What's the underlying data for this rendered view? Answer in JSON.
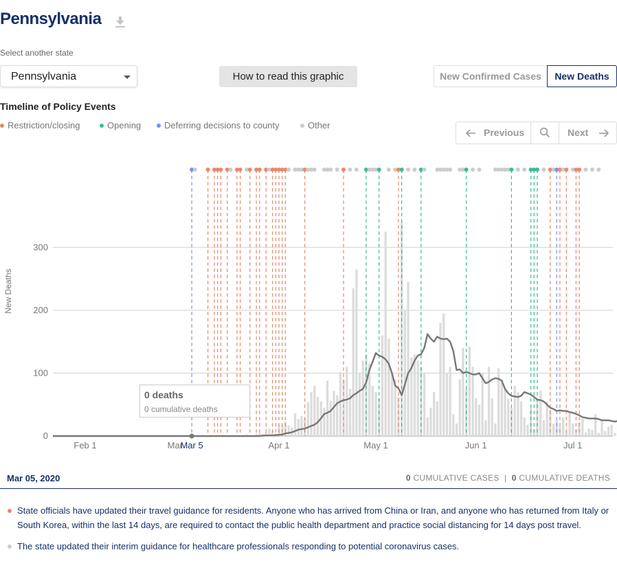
{
  "header": {
    "title": "Pennsylvania"
  },
  "selector": {
    "label": "Select another state",
    "value": "Pennsylvania"
  },
  "howto_label": "How to read this graphic",
  "toggles": {
    "cases": "New Confirmed Cases",
    "deaths": "New Deaths"
  },
  "timeline": {
    "title": "Timeline of Policy Events",
    "legend": [
      {
        "label": "Restriction/closing",
        "color": "#e8896b"
      },
      {
        "label": "Opening",
        "color": "#3fb99b"
      },
      {
        "label": "Deferring decisions to county",
        "color": "#7b8ff0"
      },
      {
        "label": "Other",
        "color": "#cccccc"
      }
    ]
  },
  "nav": {
    "prev": "Previous",
    "next": "Next"
  },
  "tooltip": {
    "deaths": "0 deaths",
    "cumulative": "0 cumulative deaths"
  },
  "footer": {
    "date": "Mar 05, 2020",
    "cum_cases_num": "0",
    "cum_cases_label": "CUMULATIVE CASES",
    "separator": "|",
    "cum_deaths_num": "0",
    "cum_deaths_label": "CUMULATIVE DEATHS"
  },
  "events": [
    {
      "color": "#e8896b",
      "text": "State officials have updated their travel guidance for residents. Anyone who has arrived from China or Iran, and anyone who has returned from Italy or South Korea, within the last 14 days, are required to contact the public health department and practice social distancing for 14 days post travel."
    },
    {
      "color": "#cccccc",
      "text": "The state updated their interim guidance for healthcare professionals responding to potential coronavirus cases."
    }
  ],
  "chart_data": {
    "type": "bar",
    "ylabel": "New Deaths",
    "ylim": [
      0,
      380
    ],
    "yticks": [
      0,
      100,
      200,
      300
    ],
    "x_range": [
      "2020-01-22",
      "2020-07-16"
    ],
    "xticks": [
      {
        "label": "Feb 1",
        "date": "2020-02-01"
      },
      {
        "label": "Mar 1",
        "date": "2020-03-01"
      },
      {
        "label": "Apr 1",
        "date": "2020-04-01"
      },
      {
        "label": "May 1",
        "date": "2020-05-01"
      },
      {
        "label": "Jun 1",
        "date": "2020-06-01"
      },
      {
        "label": "Jul 1",
        "date": "2020-07-01"
      }
    ],
    "selected": {
      "label": "Mar 5",
      "date": "2020-03-05",
      "value": 0
    },
    "series": [
      {
        "type": "bar",
        "start": "2020-03-18",
        "values": [
          0,
          1,
          1,
          0,
          2,
          1,
          1,
          3,
          5,
          3,
          6,
          12,
          8,
          4,
          17,
          18,
          23,
          17,
          14,
          36,
          27,
          32,
          28,
          54,
          70,
          80,
          62,
          55,
          45,
          88,
          56,
          72,
          65,
          102,
          90,
          110,
          75,
          235,
          265,
          100,
          120,
          130,
          115,
          80,
          70,
          60,
          160,
          325,
          155,
          100,
          90,
          62,
          340,
          200,
          245,
          125,
          130,
          120,
          110,
          100,
          30,
          45,
          70,
          55,
          180,
          195,
          100,
          110,
          35,
          20,
          90,
          140,
          75,
          142,
          110,
          60,
          50,
          100,
          25,
          110,
          60,
          20,
          108,
          90,
          75,
          60,
          45,
          80,
          70,
          55,
          30,
          18,
          45,
          10,
          58,
          72,
          25,
          55,
          42,
          20,
          25,
          15,
          30,
          8,
          38,
          20,
          10,
          22,
          28,
          6,
          12,
          10,
          35,
          5,
          25,
          8,
          15,
          18,
          5,
          30,
          35,
          20,
          37
        ]
      },
      {
        "type": "line",
        "name": "7-day average",
        "start": "2020-01-22",
        "values": [
          0,
          0,
          0,
          0,
          0,
          0,
          0,
          0,
          0,
          0,
          0,
          0,
          0,
          0,
          0,
          0,
          0,
          0,
          0,
          0,
          0,
          0,
          0,
          0,
          0,
          0,
          0,
          0,
          0,
          0,
          0,
          0,
          0,
          0,
          0,
          0,
          0,
          0,
          0,
          0,
          0,
          0,
          0,
          0,
          0,
          0,
          0,
          0,
          0,
          0,
          0,
          0,
          0,
          0,
          0,
          0,
          0,
          0,
          0,
          0,
          0,
          0,
          0,
          0,
          0,
          0.5,
          1,
          1,
          1,
          1.5,
          2,
          2.5,
          4,
          5,
          6,
          8,
          10,
          11,
          12,
          14,
          16,
          18,
          22,
          28,
          35,
          37,
          40,
          46,
          52,
          55,
          57,
          58,
          60,
          65,
          68,
          72,
          75,
          85,
          105,
          118,
          132,
          128,
          126,
          122,
          115,
          100,
          80,
          76,
          65,
          82,
          100,
          108,
          120,
          128,
          130,
          140,
          162,
          155,
          150,
          158,
          155,
          154,
          155,
          150,
          135,
          105,
          106,
          100,
          102,
          100,
          98,
          98,
          100,
          92,
          84,
          86,
          90,
          92,
          91,
          88,
          75,
          68,
          64,
          63,
          62,
          64,
          70,
          68,
          66,
          62,
          58,
          57,
          55,
          50,
          45,
          43,
          40,
          41,
          40,
          40,
          38,
          37,
          35,
          33,
          30,
          29,
          28,
          28,
          28,
          27,
          25,
          25,
          25,
          24,
          23,
          24,
          22,
          21,
          20,
          20,
          19,
          19,
          20
        ]
      }
    ],
    "policy_events": [
      {
        "date": "2020-03-05",
        "cat": "county"
      },
      {
        "date": "2020-03-06",
        "cat": "other"
      },
      {
        "date": "2020-03-10",
        "cat": "restriction"
      },
      {
        "date": "2020-03-12",
        "cat": "restriction"
      },
      {
        "date": "2020-03-13",
        "cat": "restriction"
      },
      {
        "date": "2020-03-14",
        "cat": "restriction"
      },
      {
        "date": "2020-03-16",
        "cat": "restriction"
      },
      {
        "date": "2020-03-17",
        "cat": "other"
      },
      {
        "date": "2020-03-19",
        "cat": "restriction"
      },
      {
        "date": "2020-03-20",
        "cat": "restriction"
      },
      {
        "date": "2020-03-22",
        "cat": "other"
      },
      {
        "date": "2020-03-23",
        "cat": "restriction"
      },
      {
        "date": "2020-03-25",
        "cat": "restriction"
      },
      {
        "date": "2020-03-26",
        "cat": "restriction"
      },
      {
        "date": "2020-03-28",
        "cat": "restriction"
      },
      {
        "date": "2020-03-29",
        "cat": "other"
      },
      {
        "date": "2020-03-30",
        "cat": "restriction"
      },
      {
        "date": "2020-03-31",
        "cat": "restriction"
      },
      {
        "date": "2020-04-01",
        "cat": "restriction"
      },
      {
        "date": "2020-04-02",
        "cat": "restriction"
      },
      {
        "date": "2020-04-03",
        "cat": "restriction"
      },
      {
        "date": "2020-04-04",
        "cat": "other"
      },
      {
        "date": "2020-04-06",
        "cat": "other"
      },
      {
        "date": "2020-04-07",
        "cat": "other"
      },
      {
        "date": "2020-04-08",
        "cat": "other"
      },
      {
        "date": "2020-04-09",
        "cat": "restriction"
      },
      {
        "date": "2020-04-10",
        "cat": "other"
      },
      {
        "date": "2020-04-11",
        "cat": "other"
      },
      {
        "date": "2020-04-12",
        "cat": "other"
      },
      {
        "date": "2020-04-15",
        "cat": "other"
      },
      {
        "date": "2020-04-16",
        "cat": "other"
      },
      {
        "date": "2020-04-17",
        "cat": "other"
      },
      {
        "date": "2020-04-19",
        "cat": "other"
      },
      {
        "date": "2020-04-21",
        "cat": "restriction"
      },
      {
        "date": "2020-04-23",
        "cat": "other"
      },
      {
        "date": "2020-04-25",
        "cat": "other"
      },
      {
        "date": "2020-04-28",
        "cat": "opening"
      },
      {
        "date": "2020-04-29",
        "cat": "other"
      },
      {
        "date": "2020-04-30",
        "cat": "other"
      },
      {
        "date": "2020-05-01",
        "cat": "other"
      },
      {
        "date": "2020-05-02",
        "cat": "opening"
      },
      {
        "date": "2020-05-05",
        "cat": "other"
      },
      {
        "date": "2020-05-07",
        "cat": "other"
      },
      {
        "date": "2020-05-08",
        "cat": "restriction"
      },
      {
        "date": "2020-05-09",
        "cat": "opening"
      },
      {
        "date": "2020-05-11",
        "cat": "other"
      },
      {
        "date": "2020-05-13",
        "cat": "other"
      },
      {
        "date": "2020-05-15",
        "cat": "opening"
      },
      {
        "date": "2020-05-16",
        "cat": "other"
      },
      {
        "date": "2020-05-20",
        "cat": "other"
      },
      {
        "date": "2020-05-21",
        "cat": "other"
      },
      {
        "date": "2020-05-22",
        "cat": "other"
      },
      {
        "date": "2020-05-23",
        "cat": "other"
      },
      {
        "date": "2020-05-24",
        "cat": "other"
      },
      {
        "date": "2020-05-27",
        "cat": "other"
      },
      {
        "date": "2020-05-28",
        "cat": "other"
      },
      {
        "date": "2020-05-29",
        "cat": "opening"
      },
      {
        "date": "2020-05-31",
        "cat": "other"
      },
      {
        "date": "2020-06-02",
        "cat": "other"
      },
      {
        "date": "2020-06-07",
        "cat": "other"
      },
      {
        "date": "2020-06-08",
        "cat": "other"
      },
      {
        "date": "2020-06-09",
        "cat": "other"
      },
      {
        "date": "2020-06-10",
        "cat": "other"
      },
      {
        "date": "2020-06-11",
        "cat": "other"
      },
      {
        "date": "2020-06-12",
        "cat": "opening"
      },
      {
        "date": "2020-06-14",
        "cat": "other"
      },
      {
        "date": "2020-06-16",
        "cat": "other"
      },
      {
        "date": "2020-06-18",
        "cat": "opening"
      },
      {
        "date": "2020-06-19",
        "cat": "opening"
      },
      {
        "date": "2020-06-20",
        "cat": "opening"
      },
      {
        "date": "2020-06-22",
        "cat": "other"
      },
      {
        "date": "2020-06-24",
        "cat": "restriction"
      },
      {
        "date": "2020-06-25",
        "cat": "other"
      },
      {
        "date": "2020-06-26",
        "cat": "county"
      },
      {
        "date": "2020-06-27",
        "cat": "restriction"
      },
      {
        "date": "2020-06-28",
        "cat": "other"
      },
      {
        "date": "2020-06-29",
        "cat": "restriction"
      },
      {
        "date": "2020-07-01",
        "cat": "other"
      },
      {
        "date": "2020-07-02",
        "cat": "restriction"
      },
      {
        "date": "2020-07-03",
        "cat": "restriction"
      },
      {
        "date": "2020-07-05",
        "cat": "other"
      },
      {
        "date": "2020-07-07",
        "cat": "other"
      },
      {
        "date": "2020-07-09",
        "cat": "other"
      }
    ]
  }
}
